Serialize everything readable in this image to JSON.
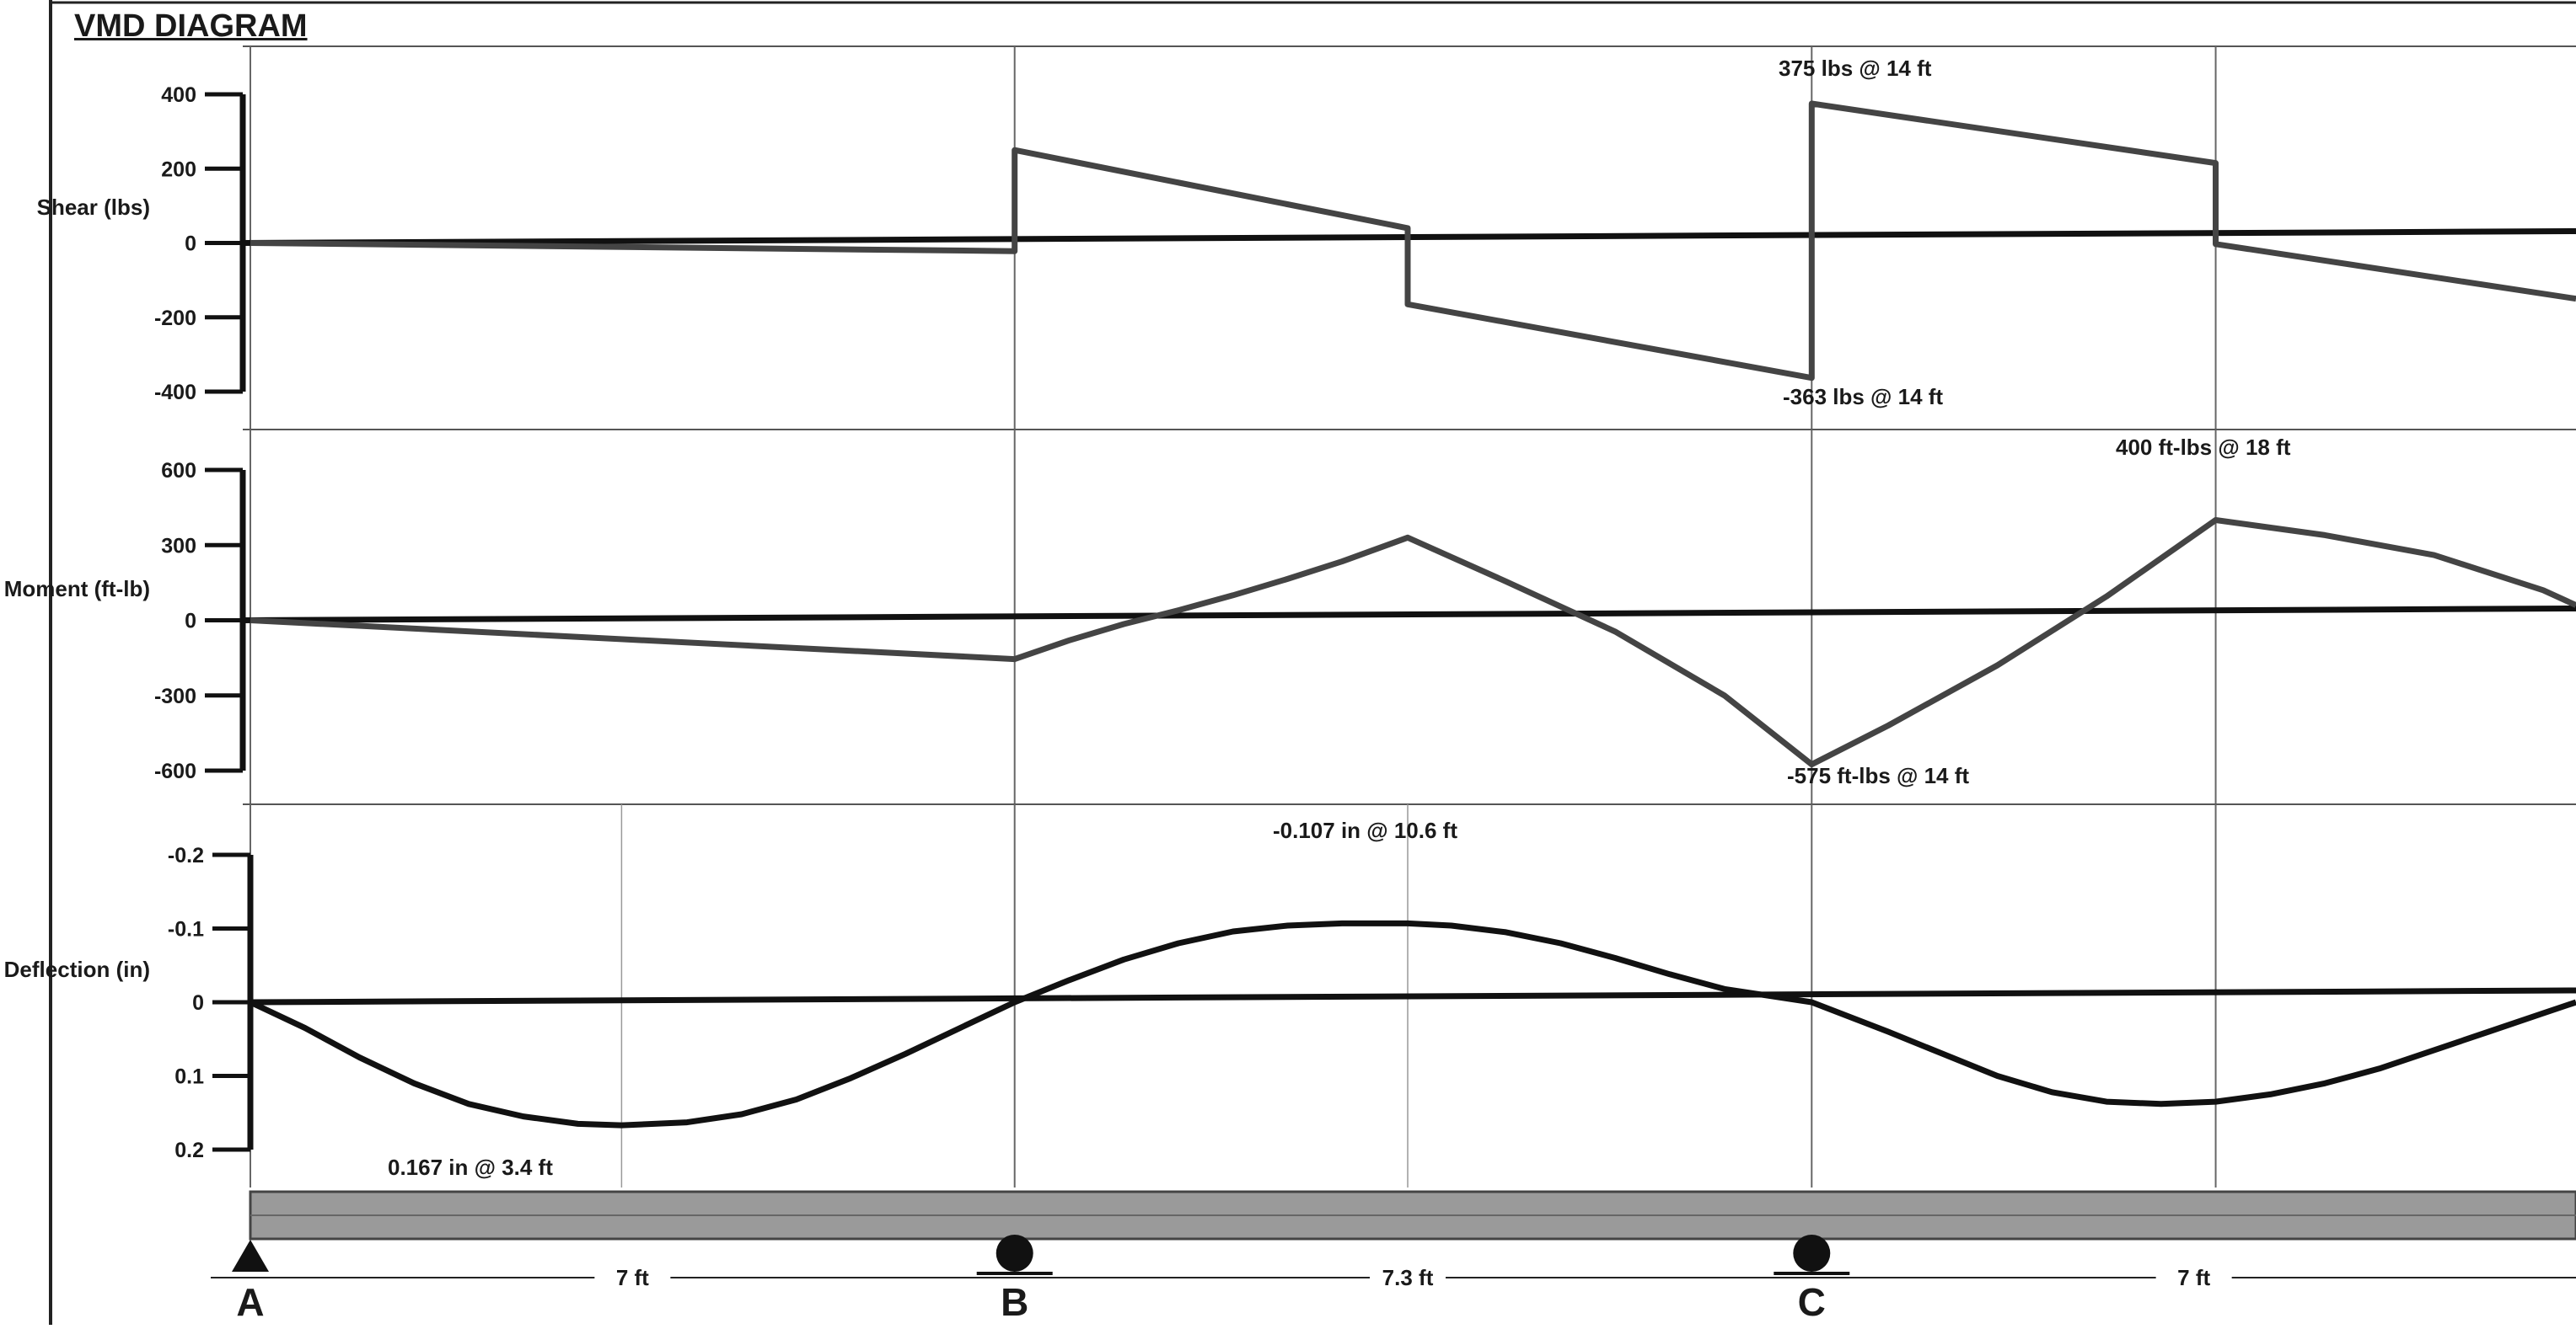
{
  "title": "VMD DIAGRAM",
  "chart_data": [
    {
      "type": "line",
      "ylabel": "Shear (lbs)",
      "yticks": [
        400,
        200,
        0,
        -200,
        -400
      ],
      "ylim": [
        -400,
        400
      ],
      "series": [
        {
          "x": [
            0,
            7,
            7,
            10.6,
            10.6,
            14.3,
            14.3,
            18,
            18,
            21.3
          ],
          "values": [
            0,
            -22,
            250,
            40,
            -165,
            -363,
            375,
            215,
            -3,
            -150
          ]
        }
      ],
      "annotations": [
        "375 lbs @ 14 ft",
        "-363 lbs @ 14 ft"
      ]
    },
    {
      "type": "line",
      "ylabel": "Moment (ft-lb)",
      "yticks": [
        600,
        300,
        0,
        -300,
        -600
      ],
      "ylim": [
        -600,
        600
      ],
      "series": [
        {
          "x": [
            0,
            7,
            7.5,
            8,
            8.5,
            9,
            9.5,
            10,
            10.6,
            11.5,
            12.5,
            13.5,
            14.3,
            15,
            16,
            17,
            18,
            19,
            20,
            21,
            21.3
          ],
          "values": [
            0,
            -155,
            -80,
            -15,
            40,
            100,
            165,
            235,
            330,
            155,
            -45,
            -300,
            -575,
            -420,
            -180,
            95,
            400,
            340,
            260,
            120,
            60
          ]
        }
      ],
      "annotations": [
        "400 ft-lbs @ 18 ft",
        "-575 ft-lbs @ 14 ft"
      ]
    },
    {
      "type": "line",
      "ylabel": "Deflection (in)",
      "yticks": [
        -0.2,
        -0.1,
        0,
        0.1,
        0.2
      ],
      "ylim": [
        -0.2,
        0.2
      ],
      "series": [
        {
          "x": [
            0,
            0.5,
            1,
            1.5,
            2,
            2.5,
            3,
            3.4,
            4,
            4.5,
            5,
            5.5,
            6,
            6.5,
            7,
            7.5,
            8,
            8.5,
            9,
            9.5,
            10,
            10.6,
            11,
            11.5,
            12,
            12.5,
            13,
            13.5,
            14.3,
            15,
            15.5,
            16,
            16.5,
            17,
            17.5,
            18,
            18.5,
            19,
            19.5,
            20,
            20.5,
            21,
            21.3
          ],
          "values": [
            0,
            0.035,
            0.075,
            0.11,
            0.138,
            0.155,
            0.165,
            0.167,
            0.163,
            0.152,
            0.132,
            0.103,
            0.07,
            0.035,
            0,
            -0.03,
            -0.058,
            -0.08,
            -0.096,
            -0.104,
            -0.107,
            -0.107,
            -0.104,
            -0.095,
            -0.08,
            -0.06,
            -0.038,
            -0.018,
            0,
            0.04,
            0.07,
            0.1,
            0.122,
            0.135,
            0.138,
            0.135,
            0.125,
            0.11,
            0.09,
            0.065,
            0.04,
            0.015,
            0
          ]
        }
      ],
      "annotations": [
        "-0.107 in @ 10.6 ft",
        "0.167 in @ 3.4 ft"
      ]
    }
  ],
  "supports": [
    "A",
    "B",
    "C"
  ],
  "spans": [
    "7 ft",
    "7.3 ft",
    "7 ft"
  ]
}
